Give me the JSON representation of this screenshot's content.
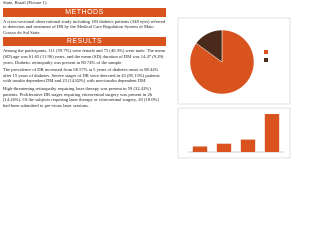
{
  "intro": "State, Brazil (Picture 1).",
  "methods": {
    "heading": "METHODS",
    "text": "A cross-sectional observational study including 183 diabetic patients (348 eyes) referred to detection and treatment of DR by the Medical Care Regulation System of Mato Grosso do Sul State."
  },
  "results": {
    "heading": "RESULTS",
    "paragraphs": [
      "Among the participants, 111 (59.7%) were female and 75 (40.3%) were male. The mean (SD) age was 61.65 (11.96) years, and the mean (SD) duration of DM was 14.47 (9.29) years. Diabetic retinopathy was present in 80.74% of the sample.",
      "The prevalence of DR increased from 60.57% at 5 years of diabetes onset to 88.42% after 15 years of diabetes. Severe stages of DR were detected in 43 (85.13%) patients with insulin dependent DM and 23 (14.82%) with non-insulin dependent DM.",
      "High-threatening retinopathy requiring laser therapy was present in 59 (32.42%) patients. Proliferative DR stages requiring vitreoretinal surgery was present in 26 (14.26%). Of the subjects requiring laser therapy or vitreoretinal surgery, 20 (18.0%) had been submitted to pre-vious laser sessions."
    ]
  },
  "chart_data": [
    {
      "type": "pie",
      "values": [
        85,
        15
      ],
      "colors": [
        "#d9531e",
        "#4a2a1a"
      ]
    },
    {
      "type": "bar",
      "values": [
        8,
        12,
        18,
        55
      ],
      "color": "#d9531e"
    }
  ]
}
